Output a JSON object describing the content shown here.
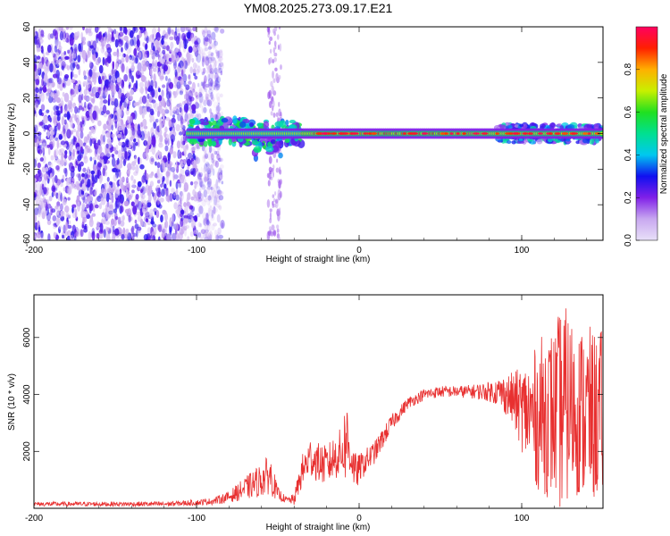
{
  "chart_data": [
    {
      "type": "heatmap",
      "title": "YM08.2025.273.09.17.E21",
      "xlabel": "Height of straight line (km)",
      "ylabel": "Frequency (Hz)",
      "xlim": [
        -200,
        150
      ],
      "ylim": [
        -60,
        60
      ],
      "xticks": [
        -200,
        -100,
        0,
        100
      ],
      "yticks": [
        -60,
        -40,
        -20,
        0,
        20,
        40,
        60
      ],
      "colorbar": {
        "label": "Normalized spectral amplitude",
        "range": [
          0,
          1
        ],
        "ticks": [
          0.0,
          0.2,
          0.4,
          0.6,
          0.8
        ],
        "colors": [
          "#e8e0f8",
          "#c8a8f0",
          "#8020e8",
          "#1010f0",
          "#00c8f0",
          "#00e090",
          "#20e020",
          "#c8f000",
          "#ffb000",
          "#ff2000",
          "#ff0060"
        ]
      },
      "features": [
        {
          "description": "broadband noise",
          "x_range": [
            -200,
            -90
          ],
          "freq_range": [
            -60,
            60
          ],
          "amplitude": 0.05
        },
        {
          "description": "faint vertical streak",
          "x_range": [
            -56,
            -48
          ],
          "freq_range": [
            -60,
            60
          ],
          "amplitude": 0.05
        },
        {
          "description": "scattered patches",
          "x_range": [
            -105,
            -35
          ],
          "freq_range": [
            -15,
            10
          ],
          "amplitude": 0.3
        },
        {
          "description": "narrow band near 0 Hz",
          "x_range": [
            -35,
            150
          ],
          "freq_range": [
            -3,
            3
          ],
          "amplitude": 0.9
        },
        {
          "description": "broadened band",
          "x_range": [
            85,
            150
          ],
          "freq_range": [
            -5,
            5
          ],
          "amplitude": 0.35
        }
      ]
    },
    {
      "type": "line",
      "xlabel": "Height of straight line (km)",
      "ylabel": "SNR (10 * v/v)",
      "xlim": [
        -200,
        150
      ],
      "ylim": [
        0,
        7500
      ],
      "xticks": [
        -200,
        -100,
        0,
        100
      ],
      "yticks": [
        2000,
        4000,
        6000
      ],
      "line_color": "#e83030",
      "series": [
        {
          "name": "SNR",
          "envelope": {
            "x": [
              -200,
              -160,
              -120,
              -100,
              -90,
              -80,
              -70,
              -60,
              -55,
              -50,
              -45,
              -40,
              -35,
              -30,
              -25,
              -20,
              -15,
              -10,
              -8,
              -5,
              -2,
              0,
              10,
              20,
              30,
              40,
              50,
              60,
              70,
              80,
              85,
              90,
              95,
              100,
              105,
              110,
              115,
              120,
              125,
              130,
              135,
              140,
              145,
              150
            ],
            "mean": [
              150,
              150,
              150,
              200,
              250,
              400,
              700,
              1000,
              1200,
              500,
              300,
              300,
              1300,
              1800,
              1600,
              1500,
              1800,
              2000,
              2500,
              1800,
              1200,
              1400,
              2000,
              3000,
              3700,
              4000,
              4100,
              4100,
              4100,
              4100,
              4100,
              4000,
              3800,
              3500,
              3300,
              3200,
              3400,
              3300,
              3500,
              3600,
              3400,
              3300,
              3200,
              3300
            ],
            "amplitude": [
              80,
              80,
              90,
              100,
              120,
              200,
              400,
              600,
              700,
              250,
              100,
              200,
              600,
              700,
              700,
              700,
              800,
              900,
              1700,
              700,
              700,
              500,
              400,
              300,
              200,
              200,
              200,
              200,
              250,
              350,
              500,
              700,
              1000,
              1500,
              2000,
              2600,
              3000,
              3000,
              3800,
              3200,
              3000,
              3200,
              3000,
              3000
            ]
          }
        }
      ]
    }
  ]
}
